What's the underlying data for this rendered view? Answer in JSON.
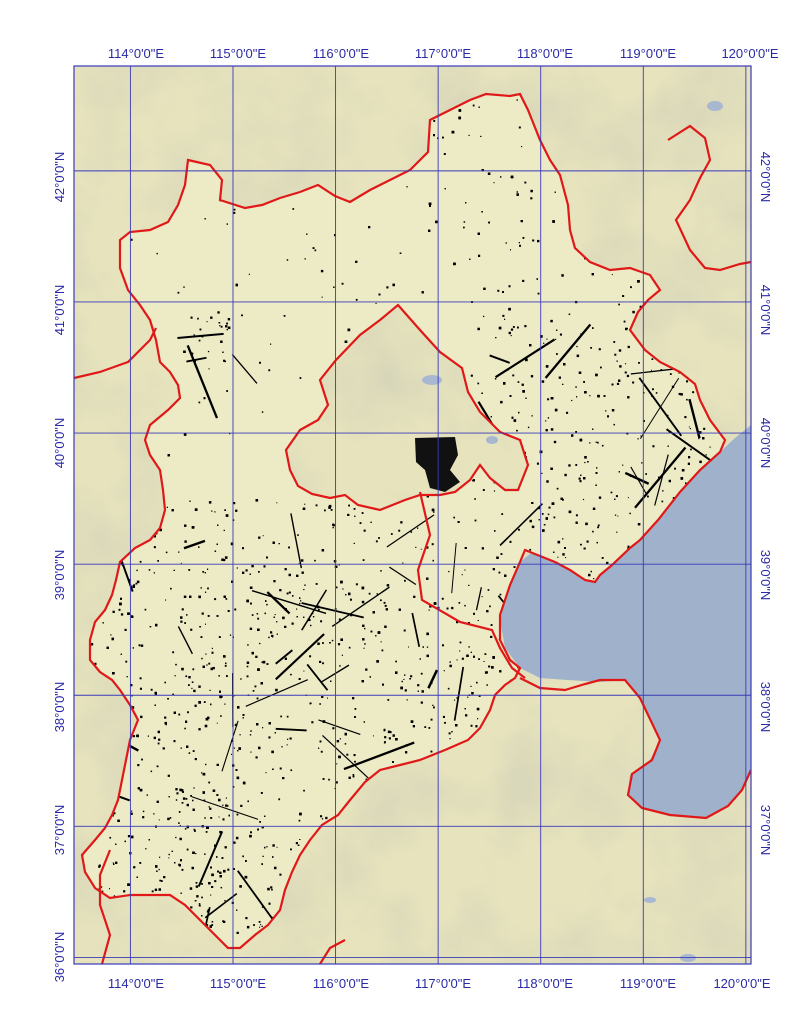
{
  "map": {
    "colors": {
      "land": "#e6e3bd",
      "relief": "#c5c4a6",
      "sea": "#9fb1cb",
      "boundary": "#e01818",
      "grid": "#3a3ab8",
      "label": "#2a2aa6",
      "points": "#000000",
      "study_fill": "#ecebc6"
    },
    "longitude_labels": [
      "114°0'0\"E",
      "115°0'0\"E",
      "116°0'0\"E",
      "117°0'0\"E",
      "118°0'0\"E",
      "119°0'0\"E",
      "120°0'0\"E"
    ],
    "latitude_labels": [
      "42°0'0\"N",
      "41°0'0\"N",
      "40°0'0\"N",
      "39°0'0\"N",
      "38°0'0\"N",
      "37°0'0\"N",
      "36°0'0\"N"
    ],
    "graticule": {
      "longitudes": [
        114,
        115,
        116,
        117,
        118,
        119,
        120
      ],
      "latitudes": [
        42,
        41,
        40,
        39,
        38,
        37,
        36
      ],
      "lon_range": [
        113.45,
        120.05
      ],
      "lat_range": [
        35.95,
        42.8
      ]
    }
  }
}
